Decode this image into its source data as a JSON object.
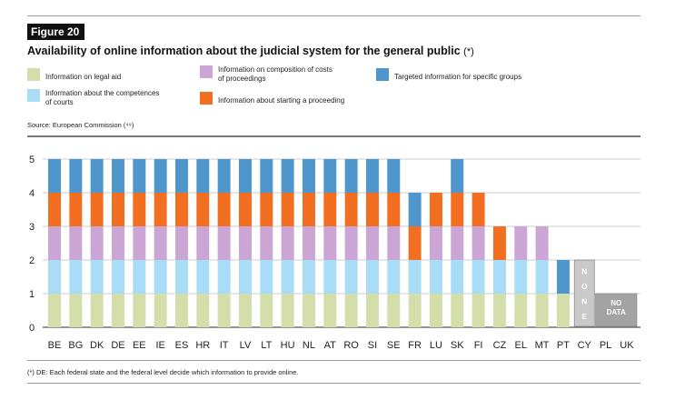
{
  "figure_label": "Figure 20",
  "title": "Availability of online information about the judicial system for the general public",
  "title_note": "(*)",
  "source": "Source: European Commission (⁴⁹)",
  "footnote": "(*) DE: Each federal state and the federal level decide which information to provide online.",
  "colors": {
    "legal_aid": "#d3deaa",
    "competences": "#a9dcf6",
    "composition": "#cba5d3",
    "starting": "#f26f22",
    "targeted": "#4f96cd",
    "none_box": "#c9c9c9",
    "nodata_box": "#a3a3a3"
  },
  "legend": [
    {
      "key": "legal_aid",
      "label": "Information on legal aid"
    },
    {
      "key": "composition",
      "label": "Information on composition of costs\nof proceedings"
    },
    {
      "key": "targeted",
      "label": "Targeted information for specific groups"
    },
    {
      "key": "competences",
      "label": "Information about the competences\nof courts"
    },
    {
      "key": "starting",
      "label": "Information about starting a proceeding"
    }
  ],
  "chart_data": {
    "type": "bar",
    "stacked": true,
    "categories": [
      "BE",
      "BG",
      "DK",
      "DE",
      "EE",
      "IE",
      "ES",
      "HR",
      "IT",
      "LV",
      "LT",
      "HU",
      "NL",
      "AT",
      "RO",
      "SI",
      "SE",
      "FR",
      "LU",
      "SK",
      "FI",
      "CZ",
      "EL",
      "MT",
      "PT",
      "CY",
      "PL",
      "UK"
    ],
    "ylim": [
      0,
      5
    ],
    "yticks": [
      0,
      1,
      2,
      3,
      4,
      5
    ],
    "grid": true,
    "series": [
      {
        "key": "legal_aid",
        "name": "Information on legal aid",
        "values": [
          1,
          1,
          1,
          1,
          1,
          1,
          1,
          1,
          1,
          1,
          1,
          1,
          1,
          1,
          1,
          1,
          1,
          1,
          1,
          1,
          1,
          1,
          1,
          1,
          1,
          0,
          0,
          0
        ]
      },
      {
        "key": "competences",
        "name": "Information about the competences of courts",
        "values": [
          1,
          1,
          1,
          1,
          1,
          1,
          1,
          1,
          1,
          1,
          1,
          1,
          1,
          1,
          1,
          1,
          1,
          1,
          1,
          1,
          1,
          1,
          1,
          1,
          0,
          0,
          0,
          0
        ]
      },
      {
        "key": "composition",
        "name": "Information on composition of costs of proceedings",
        "values": [
          1,
          1,
          1,
          1,
          1,
          1,
          1,
          1,
          1,
          1,
          1,
          1,
          1,
          1,
          1,
          1,
          1,
          0,
          1,
          1,
          1,
          0,
          1,
          1,
          0,
          0,
          0,
          0
        ]
      },
      {
        "key": "starting",
        "name": "Information about starting a proceeding",
        "values": [
          1,
          1,
          1,
          1,
          1,
          1,
          1,
          1,
          1,
          1,
          1,
          1,
          1,
          1,
          1,
          1,
          1,
          1,
          1,
          1,
          1,
          1,
          0,
          0,
          0,
          0,
          0,
          0
        ]
      },
      {
        "key": "targeted",
        "name": "Targeted information for specific groups",
        "values": [
          1,
          1,
          1,
          1,
          1,
          1,
          1,
          1,
          1,
          1,
          1,
          1,
          1,
          1,
          1,
          1,
          1,
          1,
          0,
          1,
          0,
          0,
          0,
          0,
          1,
          0,
          0,
          0
        ]
      }
    ],
    "annotations": [
      {
        "category": "CY",
        "text": "NONE",
        "value": 2
      },
      {
        "categories": [
          "PL",
          "UK"
        ],
        "text": "NO DATA",
        "value": 1
      }
    ]
  }
}
